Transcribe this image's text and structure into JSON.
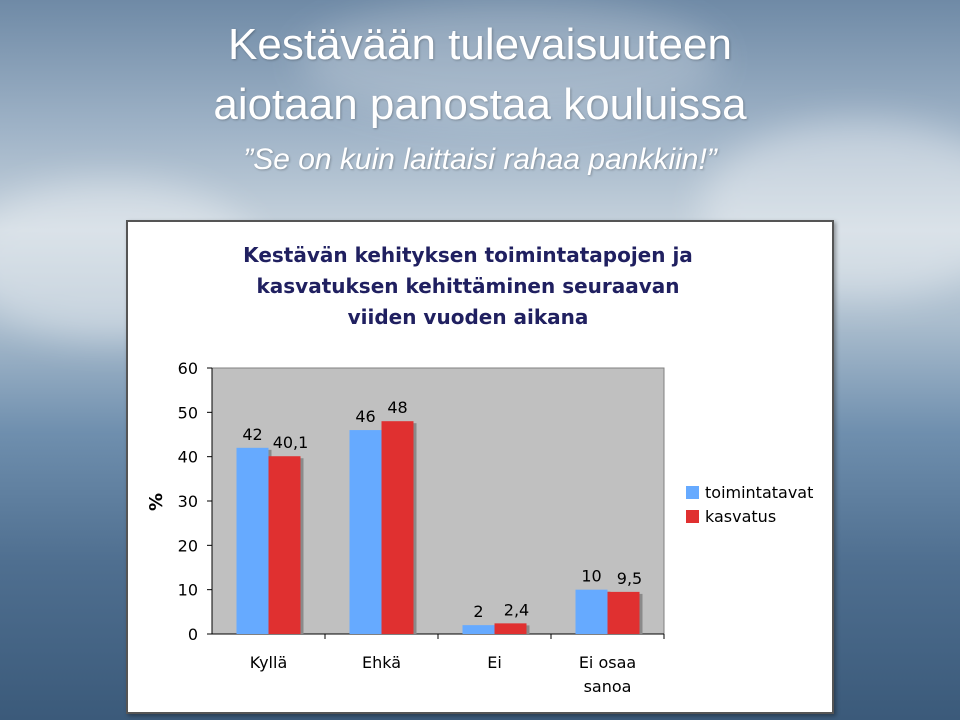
{
  "slide": {
    "title_line1": "Kestävään tulevaisuuteen",
    "title_line2": "aiotaan panostaa kouluissa",
    "quote": "”Se on kuin laittaisi rahaa pankkiin!”"
  },
  "chart_data": {
    "type": "bar",
    "title": "Kestävän kehityksen toimintatapojen ja kasvatuksen kehittäminen seuraavan viiden vuoden aikana",
    "title_lines": [
      "Kestävän kehityksen toimintatapojen ja",
      "kasvatuksen kehittäminen seuraavan",
      "viiden vuoden aikana"
    ],
    "ylabel": "%",
    "ylim": [
      0,
      60
    ],
    "yticks": [
      0,
      10,
      20,
      30,
      40,
      50,
      60
    ],
    "categories": [
      "Kyllä",
      "Ehkä",
      "Ei",
      "Ei osaa sanoa"
    ],
    "category_lines": [
      [
        "Kyllä"
      ],
      [
        "Ehkä"
      ],
      [
        "Ei"
      ],
      [
        "Ei osaa",
        "sanoa"
      ]
    ],
    "series": [
      {
        "name": "toimintatavat",
        "values": [
          42,
          46,
          2,
          10
        ],
        "labels": [
          "42",
          "46",
          "2",
          "10"
        ],
        "color": "#66aaff"
      },
      {
        "name": "kasvatus",
        "values": [
          40.1,
          48,
          2.4,
          9.5
        ],
        "labels": [
          "40,1",
          "48",
          "2,4",
          "9,5"
        ],
        "color": "#e03030"
      }
    ],
    "plot_background": "#c0c0c0",
    "grid": false,
    "legend_position": "right"
  }
}
